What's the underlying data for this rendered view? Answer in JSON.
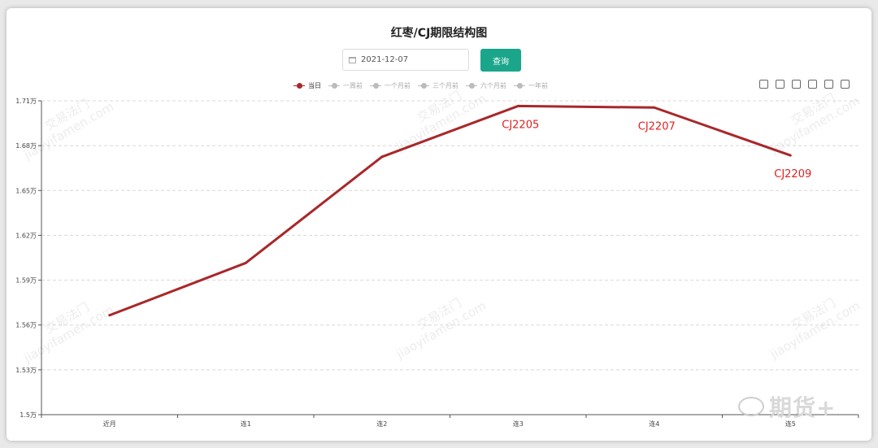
{
  "title": "红枣/CJ期限结构图",
  "date_input": {
    "value": "2021-12-07"
  },
  "query_button": "查询",
  "legend": [
    {
      "label": "当日",
      "active": true
    },
    {
      "label": "一周前",
      "active": false
    },
    {
      "label": "一个月前",
      "active": false
    },
    {
      "label": "三个月前",
      "active": false
    },
    {
      "label": "六个月前",
      "active": false
    },
    {
      "label": "一年前",
      "active": false
    }
  ],
  "toolbox": [
    "data-view-icon",
    "line-icon",
    "bar-icon",
    "stack-icon",
    "refresh-icon",
    "download-icon"
  ],
  "watermark": {
    "cn": "交易法门",
    "en": "jiaoyifamen.com"
  },
  "badge": {
    "text": "期货+"
  },
  "colors": {
    "series": "#a8282b",
    "label": "#e02020",
    "accent": "#1aa68b"
  },
  "chart_data": {
    "type": "line",
    "title": "红枣/CJ期限结构图",
    "categories": [
      "近月",
      "连1",
      "连2",
      "连3",
      "连4",
      "连5"
    ],
    "series": [
      {
        "name": "当日",
        "values": [
          15665,
          16015,
          16725,
          17065,
          17055,
          16735
        ]
      }
    ],
    "point_labels": [
      "",
      "",
      "",
      "CJ2205",
      "CJ2207",
      "CJ2209"
    ],
    "y_ticks": [
      "1.5万",
      "1.53万",
      "1.56万",
      "1.59万",
      "1.62万",
      "1.65万",
      "1.68万",
      "1.71万"
    ],
    "ylim": [
      15000,
      17100
    ],
    "grid": true,
    "legend_position": "top-center"
  }
}
